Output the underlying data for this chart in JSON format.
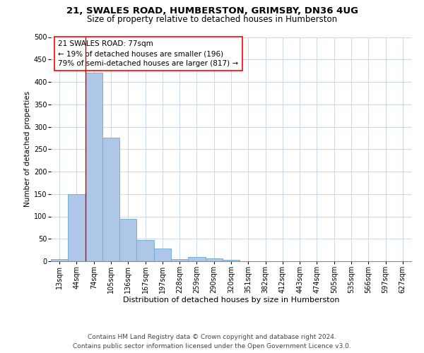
{
  "title1": "21, SWALES ROAD, HUMBERSTON, GRIMSBY, DN36 4UG",
  "title2": "Size of property relative to detached houses in Humberston",
  "xlabel": "Distribution of detached houses by size in Humberston",
  "ylabel": "Number of detached properties",
  "footer1": "Contains HM Land Registry data © Crown copyright and database right 2024.",
  "footer2": "Contains public sector information licensed under the Open Government Licence v3.0.",
  "annotation_line1": "21 SWALES ROAD: 77sqm",
  "annotation_line2": "← 19% of detached houses are smaller (196)",
  "annotation_line3": "79% of semi-detached houses are larger (817) →",
  "bar_labels": [
    "13sqm",
    "44sqm",
    "74sqm",
    "105sqm",
    "136sqm",
    "167sqm",
    "197sqm",
    "228sqm",
    "259sqm",
    "290sqm",
    "320sqm",
    "351sqm",
    "382sqm",
    "412sqm",
    "443sqm",
    "474sqm",
    "505sqm",
    "535sqm",
    "566sqm",
    "597sqm",
    "627sqm"
  ],
  "bar_heights": [
    5,
    150,
    420,
    275,
    95,
    48,
    28,
    5,
    10,
    7,
    3,
    0,
    0,
    0,
    0,
    0,
    0,
    0,
    0,
    0,
    0
  ],
  "bar_color": "#aec6e8",
  "bar_edge_color": "#6aaad4",
  "vline_x": 1.5,
  "vline_color": "#cc0000",
  "ylim": [
    0,
    500
  ],
  "yticks": [
    0,
    50,
    100,
    150,
    200,
    250,
    300,
    350,
    400,
    450,
    500
  ],
  "background_color": "#ffffff",
  "grid_color": "#c8d8e8",
  "title1_fontsize": 9.5,
  "title2_fontsize": 8.5,
  "xlabel_fontsize": 8.0,
  "ylabel_fontsize": 7.5,
  "annotation_fontsize": 7.5,
  "footer_fontsize": 6.5,
  "tick_fontsize": 7.0
}
